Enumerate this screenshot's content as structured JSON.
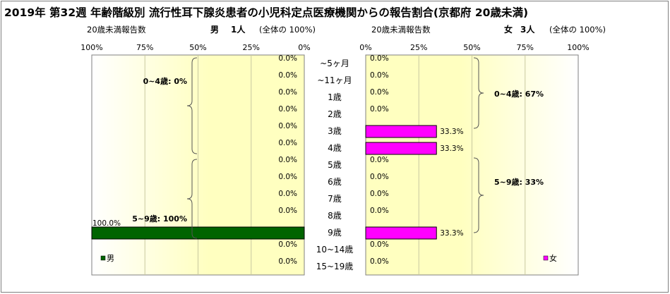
{
  "title": "2019年 第32週 年齢階級別 流行性耳下腺炎患者の小児科定点医療機関からの報告割合(京都府 20歳未満)",
  "male_panel": {
    "subtitle": "20歳未満報告数",
    "header_label": "男",
    "header_count": "1人",
    "header_total": "(全体の 100%)",
    "ticks": [
      "100%",
      "75%",
      "50%",
      "25%",
      "0%"
    ],
    "legend": "男",
    "brace_labels": [
      "0~4歳: 0%",
      "5~9歳: 100%"
    ]
  },
  "female_panel": {
    "subtitle": "20歳未満報告数",
    "header_label": "女",
    "header_count": "3人",
    "header_total": "(全体の 100%)",
    "ticks": [
      "0%",
      "25%",
      "50%",
      "75%",
      "100%"
    ],
    "legend": "女",
    "brace_labels": [
      "0~4歳: 67%",
      "5~9歳: 33%"
    ]
  },
  "chart_data": {
    "type": "bar",
    "orientation": "horizontal-butterfly",
    "categories": [
      "~5ヶ月",
      "~11ヶ月",
      "1歳",
      "2歳",
      "3歳",
      "4歳",
      "5歳",
      "6歳",
      "7歳",
      "8歳",
      "9歳",
      "10~14歳",
      "15~19歳"
    ],
    "series": [
      {
        "name": "男",
        "color": "#006400",
        "values": [
          0,
          0,
          0,
          0,
          0,
          0,
          0,
          0,
          0,
          0,
          100,
          0,
          0
        ],
        "labels": [
          "0.0%",
          "0.0%",
          "0.0%",
          "0.0%",
          "0.0%",
          "0.0%",
          "0.0%",
          "0.0%",
          "0.0%",
          "0.0%",
          "100.0%",
          "0.0%",
          "0.0%"
        ]
      },
      {
        "name": "女",
        "color": "#ff00ff",
        "values": [
          0,
          0,
          0,
          0,
          33.3,
          33.3,
          0,
          0,
          0,
          0,
          33.3,
          0,
          0
        ],
        "labels": [
          "0.0%",
          "0.0%",
          "0.0%",
          "0.0%",
          "33.3%",
          "33.3%",
          "0.0%",
          "0.0%",
          "0.0%",
          "0.0%",
          "33.3%",
          "0.0%",
          "0.0%"
        ]
      }
    ],
    "xlim": [
      0,
      100
    ],
    "grid": true,
    "colors": {
      "plot_center": "#ffffc0",
      "plot_edge": "#ffffff",
      "male": "#006400",
      "female": "#ff00ff"
    }
  }
}
